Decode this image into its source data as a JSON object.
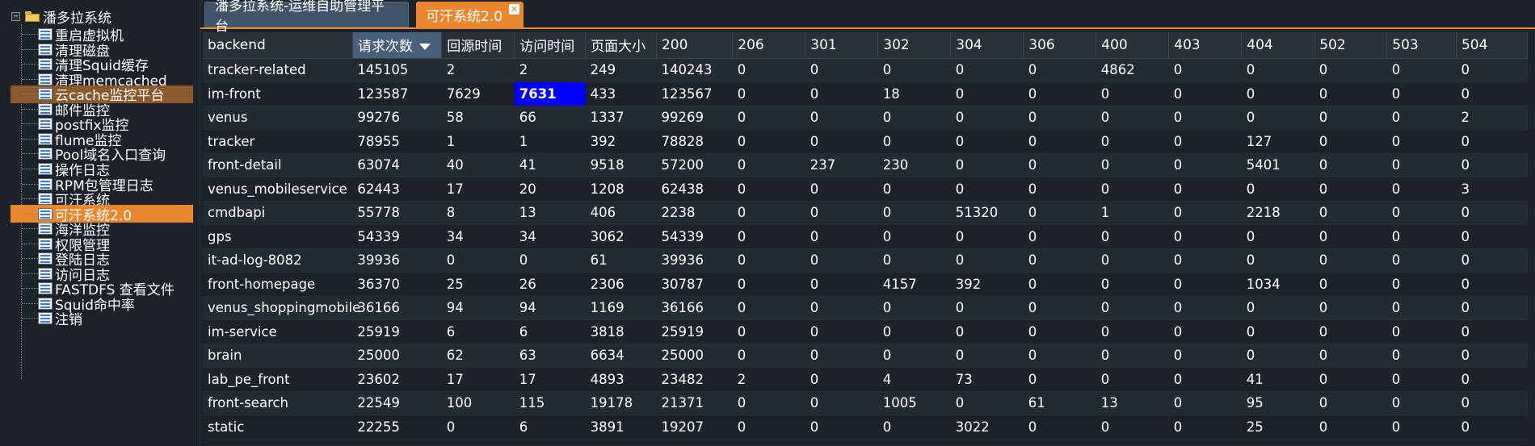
{
  "sidebar": {
    "root": {
      "label": "潘多拉系统"
    },
    "items": [
      {
        "label": "重启虚拟机"
      },
      {
        "label": "清理磁盘"
      },
      {
        "label": "清理Squid缓存"
      },
      {
        "label": "清理memcached"
      },
      {
        "label": "云cache监控平台"
      },
      {
        "label": "邮件监控"
      },
      {
        "label": "postfix监控"
      },
      {
        "label": "flume监控"
      },
      {
        "label": "Pool域名入口查询"
      },
      {
        "label": "操作日志"
      },
      {
        "label": "RPM包管理日志"
      },
      {
        "label": "可汗系统"
      },
      {
        "label": "可汗系统2.0"
      },
      {
        "label": "海洋监控"
      },
      {
        "label": "权限管理"
      },
      {
        "label": "登陆日志"
      },
      {
        "label": "访问日志"
      },
      {
        "label": "FASTDFS 查看文件"
      },
      {
        "label": "Squid命中率"
      },
      {
        "label": "注销"
      }
    ]
  },
  "tabs": [
    {
      "label": "潘多拉系统-运维自助管理平台"
    },
    {
      "label": "可汗系统2.0"
    }
  ],
  "table": {
    "headers": [
      "backend",
      "请求次数",
      "回源时间",
      "访问时间",
      "页面大小",
      "200",
      "206",
      "301",
      "302",
      "304",
      "306",
      "400",
      "403",
      "404",
      "502",
      "503",
      "504"
    ],
    "sorted_column": "请求次数",
    "rows": [
      [
        "tracker-related",
        "145105",
        "2",
        "2",
        "249",
        "140243",
        "0",
        "0",
        "0",
        "0",
        "0",
        "4862",
        "0",
        "0",
        "0",
        "0",
        "0"
      ],
      [
        "im-front",
        "123587",
        "7629",
        "7631",
        "433",
        "123567",
        "0",
        "0",
        "18",
        "0",
        "0",
        "0",
        "0",
        "0",
        "0",
        "0",
        "0"
      ],
      [
        "venus",
        "99276",
        "58",
        "66",
        "1337",
        "99269",
        "0",
        "0",
        "0",
        "0",
        "0",
        "0",
        "0",
        "0",
        "0",
        "0",
        "2"
      ],
      [
        "tracker",
        "78955",
        "1",
        "1",
        "392",
        "78828",
        "0",
        "0",
        "0",
        "0",
        "0",
        "0",
        "0",
        "127",
        "0",
        "0",
        "0"
      ],
      [
        "front-detail",
        "63074",
        "40",
        "41",
        "9518",
        "57200",
        "0",
        "237",
        "230",
        "0",
        "0",
        "0",
        "0",
        "5401",
        "0",
        "0",
        "0"
      ],
      [
        "venus_mobileservice",
        "62443",
        "17",
        "20",
        "1208",
        "62438",
        "0",
        "0",
        "0",
        "0",
        "0",
        "0",
        "0",
        "0",
        "0",
        "0",
        "3"
      ],
      [
        "cmdbapi",
        "55778",
        "8",
        "13",
        "406",
        "2238",
        "0",
        "0",
        "0",
        "51320",
        "0",
        "1",
        "0",
        "2218",
        "0",
        "0",
        "0"
      ],
      [
        "gps",
        "54339",
        "34",
        "34",
        "3062",
        "54339",
        "0",
        "0",
        "0",
        "0",
        "0",
        "0",
        "0",
        "0",
        "0",
        "0",
        "0"
      ],
      [
        "it-ad-log-8082",
        "39936",
        "0",
        "0",
        "61",
        "39936",
        "0",
        "0",
        "0",
        "0",
        "0",
        "0",
        "0",
        "0",
        "0",
        "0",
        "0"
      ],
      [
        "front-homepage",
        "36370",
        "25",
        "26",
        "2306",
        "30787",
        "0",
        "0",
        "4157",
        "392",
        "0",
        "0",
        "0",
        "1034",
        "0",
        "0",
        "0"
      ],
      [
        "venus_shoppingmobile",
        "36166",
        "94",
        "94",
        "1169",
        "36166",
        "0",
        "0",
        "0",
        "0",
        "0",
        "0",
        "0",
        "0",
        "0",
        "0",
        "0"
      ],
      [
        "im-service",
        "25919",
        "6",
        "6",
        "3818",
        "25919",
        "0",
        "0",
        "0",
        "0",
        "0",
        "0",
        "0",
        "0",
        "0",
        "0",
        "0"
      ],
      [
        "brain",
        "25000",
        "62",
        "63",
        "6634",
        "25000",
        "0",
        "0",
        "0",
        "0",
        "0",
        "0",
        "0",
        "0",
        "0",
        "0",
        "0"
      ],
      [
        "lab_pe_front",
        "23602",
        "17",
        "17",
        "4893",
        "23482",
        "2",
        "0",
        "4",
        "73",
        "0",
        "0",
        "0",
        "41",
        "0",
        "0",
        "0"
      ],
      [
        "front-search",
        "22549",
        "100",
        "115",
        "19178",
        "21371",
        "0",
        "0",
        "1005",
        "0",
        "61",
        "13",
        "0",
        "95",
        "0",
        "0",
        "0"
      ],
      [
        "static",
        "22255",
        "0",
        "6",
        "3891",
        "19207",
        "0",
        "0",
        "0",
        "3022",
        "0",
        "0",
        "0",
        "25",
        "0",
        "0",
        "0"
      ]
    ]
  },
  "colors": {
    "accent": "#e8872d",
    "hover": "#8a5a2c",
    "selected_cell": "#0000ff",
    "background": "#1d2329"
  }
}
